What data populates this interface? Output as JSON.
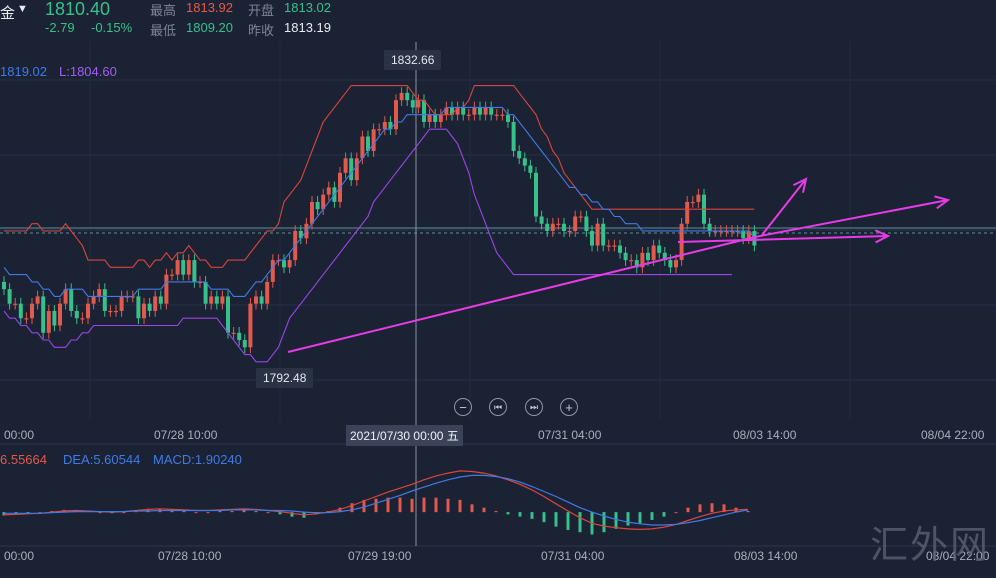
{
  "header": {
    "symbol_suffix": "金",
    "dropdown_glyph": "▼",
    "price": "1810.40",
    "change": "-2.79",
    "change_pct": "-0.15%",
    "high_label": "最高",
    "high_value": "1813.92",
    "open_label": "开盘",
    "open_value": "1813.02",
    "low_label": "最低",
    "low_value": "1809.20",
    "prev_close_label": "昨收",
    "prev_close_value": "1813.19"
  },
  "indicator_top": {
    "upper": "1819.02",
    "lower": "L:1804.60"
  },
  "price_tags": {
    "high": "1832.66",
    "low": "1792.48"
  },
  "crosshair_label": "2021/07/30 00:00 五",
  "x_labels_main": [
    "00:00",
    "07/28 10:00",
    "07/31 04:00",
    "08/03 14:00",
    "08/04 22:00"
  ],
  "x_labels_macd": [
    "00:00",
    "07/28 10:00",
    "07/29 19:00",
    "07/31 04:00",
    "08/03 14:00",
    "08/04 22:00"
  ],
  "macd_legend": {
    "dif": "6.55664",
    "dea": "DEA:5.60544",
    "macd": "MACD:1.90240"
  },
  "nav_buttons": [
    "−",
    "⏮",
    "⏭",
    "+"
  ],
  "watermark": "汇外网",
  "colors": {
    "bg": "#1b2233",
    "up": "#e2594d",
    "down": "#37c08a",
    "mid": "#3f7be6",
    "band": "#9a45e8",
    "upper": "#d8463c",
    "arrow": "#e63ce6"
  },
  "chart_data": {
    "type": "candlestick",
    "ylim": [
      1786,
      1838
    ],
    "series": [
      {
        "name": "",
        "type": "candlestick",
        "close": [
          1804,
          1802,
          1802,
          1800,
          1800,
          1802,
          1803,
          1798,
          1801,
          1799,
          1802,
          1804,
          1801,
          1800,
          1800,
          1802,
          1803,
          1804,
          1801,
          1801,
          1801,
          1803,
          1803,
          1803,
          1800,
          1802,
          1801,
          1803,
          1802,
          1806,
          1806,
          1808,
          1806,
          1808,
          1805,
          1805,
          1802,
          1803,
          1802,
          1803,
          1798,
          1798,
          1797,
          1796,
          1802,
          1803,
          1802,
          1805,
          1808,
          1808,
          1807,
          1808,
          1812,
          1811,
          1813,
          1816,
          1815,
          1817,
          1818,
          1816,
          1820,
          1822,
          1819,
          1822,
          1825,
          1823,
          1826,
          1826,
          1827,
          1826,
          1830,
          1831,
          1830,
          1829,
          1830,
          1827,
          1828,
          1827,
          1828,
          1829,
          1828,
          1829,
          1828,
          1828,
          1829,
          1828,
          1829,
          1828,
          1828,
          1828,
          1827,
          1823,
          1822,
          1821,
          1820,
          1814,
          1813,
          1812,
          1813,
          1813,
          1812,
          1812,
          1814,
          1814,
          1812,
          1810,
          1813,
          1810,
          1810,
          1810,
          1809,
          1808,
          1808,
          1807,
          1809,
          1808,
          1810,
          1809,
          1808,
          1807,
          1808,
          1813,
          1816,
          1816,
          1817,
          1813,
          1812,
          1812,
          1812,
          1812,
          1812,
          1812,
          1811,
          1812,
          1810
        ]
      },
      {
        "name": "",
        "type": "line",
        "values": [
          1812,
          1812,
          1812,
          1812,
          1812,
          1813,
          1813,
          1812,
          1812,
          1812,
          1812,
          1813,
          1812,
          1811,
          1810,
          1808,
          1808,
          1808,
          1808,
          1807,
          1807,
          1807,
          1807,
          1807,
          1808,
          1808,
          1807,
          1808,
          1808,
          1809,
          1808,
          1809,
          1809,
          1810,
          1809,
          1808,
          1808,
          1807,
          1807,
          1807,
          1808,
          1808,
          1808,
          1808,
          1809,
          1810,
          1811,
          1812,
          1812,
          1813,
          1816,
          1817,
          1818,
          1819,
          1821,
          1823,
          1825,
          1827,
          1828,
          1829,
          1830,
          1831,
          1832,
          1832,
          1832,
          1832,
          1832,
          1832,
          1832,
          1832,
          1832,
          1832,
          1832,
          1831,
          1830,
          1830,
          1829,
          1828,
          1828,
          1828,
          1828,
          1829,
          1829,
          1830,
          1832,
          1832,
          1832,
          1832,
          1832,
          1832,
          1832,
          1832,
          1831,
          1830,
          1829,
          1828,
          1826,
          1825,
          1823,
          1822,
          1820,
          1819,
          1818,
          1817,
          1816,
          1815,
          1815,
          1815,
          1815,
          1815,
          1815,
          1815,
          1815,
          1815,
          1815,
          1815,
          1815,
          1815,
          1815,
          1815,
          1815,
          1815,
          1815,
          1815,
          1815,
          1815,
          1815,
          1815,
          1815,
          1815,
          1815,
          1815,
          1815,
          1815,
          1815
        ]
      },
      {
        "name": "",
        "type": "line",
        "values": [
          1807,
          1806,
          1806,
          1806,
          1806,
          1805,
          1805,
          1804,
          1804,
          1803,
          1803,
          1804,
          1804,
          1804,
          1804,
          1803,
          1803,
          1803,
          1803,
          1803,
          1803,
          1803,
          1803,
          1803,
          1804,
          1804,
          1804,
          1804,
          1804,
          1805,
          1805,
          1805,
          1805,
          1805,
          1805,
          1805,
          1805,
          1804,
          1804,
          1804,
          1804,
          1803,
          1803,
          1803,
          1804,
          1805,
          1805,
          1806,
          1807,
          1808,
          1808,
          1809,
          1810,
          1811,
          1812,
          1813,
          1814,
          1815,
          1816,
          1817,
          1818,
          1819,
          1820,
          1821,
          1822,
          1823,
          1824,
          1825,
          1826,
          1826,
          1827,
          1827,
          1828,
          1828,
          1828,
          1828,
          1828,
          1828,
          1828,
          1829,
          1829,
          1829,
          1829,
          1829,
          1829,
          1829,
          1829,
          1829,
          1829,
          1829,
          1828,
          1828,
          1827,
          1826,
          1825,
          1824,
          1823,
          1822,
          1821,
          1820,
          1819,
          1818,
          1818,
          1817,
          1817,
          1816,
          1816,
          1815,
          1815,
          1814,
          1814,
          1813,
          1813,
          1813,
          1812,
          1812,
          1812,
          1812,
          1812,
          1812,
          1812,
          1812,
          1812,
          1812,
          1812,
          1812,
          1812,
          1812,
          1812,
          1812,
          1812,
          1812,
          1812,
          1812,
          1811
        ]
      },
      {
        "name": "",
        "type": "line",
        "values": [
          1801,
          1800,
          1800,
          1799,
          1799,
          1798,
          1798,
          1797,
          1797,
          1796,
          1796,
          1796,
          1797,
          1797,
          1798,
          1798,
          1799,
          1799,
          1799,
          1799,
          1799,
          1799,
          1799,
          1799,
          1799,
          1799,
          1799,
          1799,
          1799,
          1799,
          1799,
          1799,
          1800,
          1800,
          1800,
          1800,
          1800,
          1800,
          1800,
          1799,
          1798,
          1797,
          1796,
          1795,
          1795,
          1794,
          1794,
          1794,
          1795,
          1796,
          1798,
          1800,
          1801,
          1802,
          1803,
          1804,
          1805,
          1806,
          1807,
          1808,
          1809,
          1810,
          1811,
          1812,
          1813,
          1814,
          1816,
          1817,
          1818,
          1819,
          1820,
          1821,
          1822,
          1823,
          1824,
          1825,
          1826,
          1826,
          1826,
          1826,
          1825,
          1824,
          1822,
          1820,
          1817,
          1815,
          1813,
          1811,
          1809,
          1808,
          1807,
          1806,
          1806,
          1806,
          1806,
          1806,
          1806,
          1806,
          1806,
          1806,
          1806,
          1806,
          1806,
          1806,
          1806,
          1806,
          1806,
          1806,
          1806,
          1806,
          1806,
          1806,
          1806,
          1806,
          1806,
          1806,
          1806,
          1806,
          1806,
          1806,
          1806,
          1806,
          1806,
          1806,
          1806,
          1806,
          1806,
          1806,
          1806,
          1806,
          1806
        ]
      }
    ],
    "macd": {
      "dif": [
        -0.5,
        -0.4,
        -0.3,
        -0.2,
        0.0,
        0.2,
        0.3,
        0.2,
        0.1,
        0.0,
        0.1,
        0.3,
        0.5,
        0.6,
        0.5,
        0.4,
        0.3,
        0.3,
        0.4,
        0.5,
        0.6,
        0.5,
        0.3,
        0.1,
        -0.2,
        -0.5,
        -0.3,
        0.0,
        0.5,
        1.2,
        2.0,
        2.8,
        3.6,
        4.3,
        5.0,
        5.8,
        6.5,
        7.0,
        7.4,
        7.3,
        7.0,
        6.5,
        5.8,
        5.0,
        4.0,
        2.8,
        1.5,
        0.2,
        -1.0,
        -2.0,
        -2.5,
        -2.8,
        -3.0,
        -3.1,
        -3.0,
        -2.7,
        -2.2,
        -1.5,
        -0.8,
        -0.2,
        0.2,
        0.4,
        0.5
      ],
      "dea": [
        -0.2,
        -0.2,
        -0.2,
        -0.2,
        -0.1,
        0.0,
        0.1,
        0.1,
        0.1,
        0.1,
        0.1,
        0.2,
        0.2,
        0.3,
        0.3,
        0.3,
        0.3,
        0.3,
        0.3,
        0.4,
        0.4,
        0.4,
        0.3,
        0.3,
        0.2,
        0.0,
        -0.1,
        -0.1,
        0.1,
        0.4,
        0.9,
        1.6,
        2.3,
        3.0,
        3.8,
        4.5,
        5.2,
        5.8,
        6.3,
        6.6,
        6.6,
        6.4,
        6.0,
        5.4,
        4.6,
        3.7,
        2.8,
        1.8,
        0.8,
        0.0,
        -0.7,
        -1.3,
        -1.8,
        -2.1,
        -2.3,
        -2.3,
        -2.2,
        -1.9,
        -1.5,
        -1.0,
        -0.5,
        0.0,
        0.4
      ],
      "hist": [
        -0.6,
        -0.4,
        -0.2,
        0.0,
        0.2,
        0.4,
        0.4,
        0.2,
        0.0,
        -0.2,
        0.0,
        0.2,
        0.6,
        0.6,
        0.4,
        0.2,
        0.0,
        0.0,
        0.2,
        0.2,
        0.4,
        0.2,
        0.0,
        -0.4,
        -0.8,
        -1.0,
        -0.4,
        0.2,
        0.8,
        1.6,
        2.2,
        2.4,
        2.6,
        2.6,
        2.4,
        2.6,
        2.6,
        2.4,
        2.2,
        1.4,
        0.8,
        0.2,
        -0.4,
        -0.8,
        -1.2,
        -1.8,
        -2.6,
        -3.2,
        -3.6,
        -4.0,
        -3.6,
        -3.0,
        -2.4,
        -2.0,
        -1.4,
        -0.8,
        0.0,
        0.8,
        1.4,
        1.6,
        1.4,
        0.8,
        0.2
      ],
      "ylim": [
        -5,
        9
      ]
    }
  }
}
